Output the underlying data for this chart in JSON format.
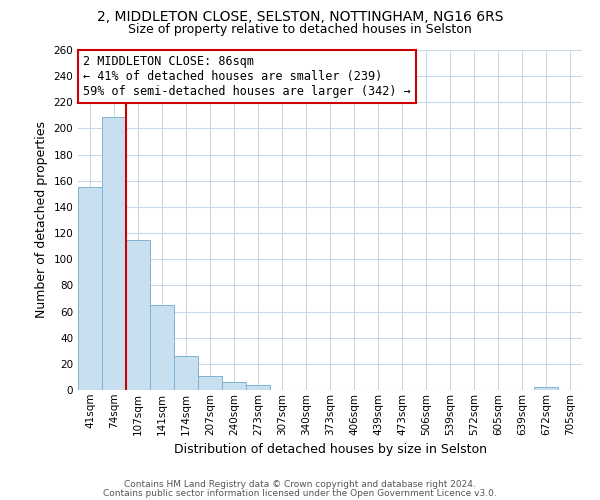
{
  "title_line1": "2, MIDDLETON CLOSE, SELSTON, NOTTINGHAM, NG16 6RS",
  "title_line2": "Size of property relative to detached houses in Selston",
  "xlabel": "Distribution of detached houses by size in Selston",
  "ylabel": "Number of detached properties",
  "categories": [
    "41sqm",
    "74sqm",
    "107sqm",
    "141sqm",
    "174sqm",
    "207sqm",
    "240sqm",
    "273sqm",
    "307sqm",
    "340sqm",
    "373sqm",
    "406sqm",
    "439sqm",
    "473sqm",
    "506sqm",
    "539sqm",
    "572sqm",
    "605sqm",
    "639sqm",
    "672sqm",
    "705sqm"
  ],
  "values": [
    155,
    209,
    115,
    65,
    26,
    11,
    6,
    4,
    0,
    0,
    0,
    0,
    0,
    0,
    0,
    0,
    0,
    0,
    0,
    2,
    0
  ],
  "bar_color": "#c8dff0",
  "bar_edgecolor": "#7fb3d3",
  "vline_color": "#cc0000",
  "vline_x": 1.5,
  "ylim": [
    0,
    260
  ],
  "yticks": [
    0,
    20,
    40,
    60,
    80,
    100,
    120,
    140,
    160,
    180,
    200,
    220,
    240,
    260
  ],
  "annotation_title": "2 MIDDLETON CLOSE: 86sqm",
  "annotation_line1": "← 41% of detached houses are smaller (239)",
  "annotation_line2": "59% of semi-detached houses are larger (342) →",
  "footer_line1": "Contains HM Land Registry data © Crown copyright and database right 2024.",
  "footer_line2": "Contains public sector information licensed under the Open Government Licence v3.0.",
  "background_color": "#ffffff",
  "grid_color": "#c8d8e8",
  "title_fontsize": 10,
  "subtitle_fontsize": 9,
  "axis_label_fontsize": 9,
  "tick_fontsize": 7.5,
  "annotation_fontsize": 8.5,
  "footer_fontsize": 6.5,
  "footer_color": "#555555"
}
